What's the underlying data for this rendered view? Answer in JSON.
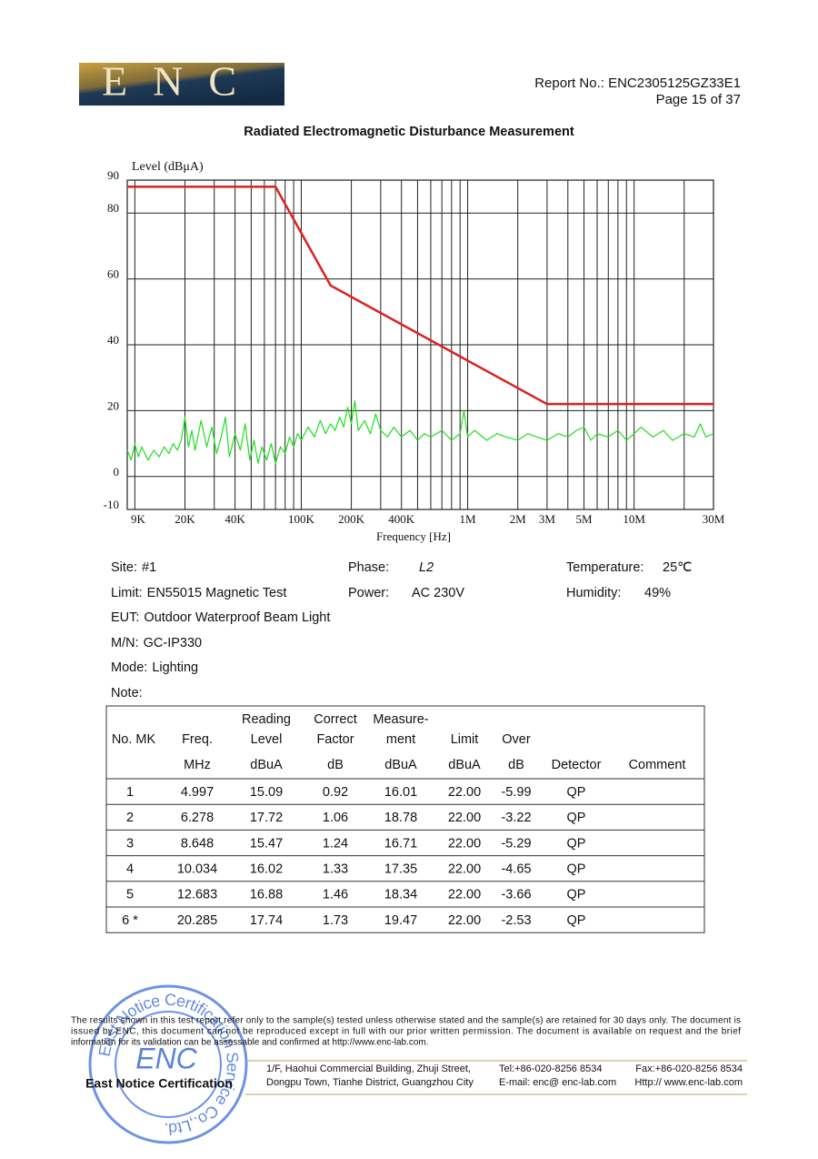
{
  "header": {
    "logo": "ENC",
    "report_no": "Report No.: ENC2305125GZ33E1",
    "page": "Page 15 of 37"
  },
  "title": "Radiated Electromagnetic Disturbance Measurement",
  "chart_data": {
    "type": "line",
    "y_label": "Level (dBμA)",
    "x_label": "Frequency [Hz]",
    "xscale": "log",
    "xlim": [
      9000,
      30000000
    ],
    "ylim": [
      -10,
      90
    ],
    "xticks": [
      {
        "value": 9000,
        "label": "9K"
      },
      {
        "value": 20000,
        "label": "20K"
      },
      {
        "value": 40000,
        "label": "40K"
      },
      {
        "value": 100000,
        "label": "100K"
      },
      {
        "value": 200000,
        "label": "200K"
      },
      {
        "value": 400000,
        "label": "400K"
      },
      {
        "value": 1000000,
        "label": "1M"
      },
      {
        "value": 2000000,
        "label": "2M"
      },
      {
        "value": 3000000,
        "label": "3M"
      },
      {
        "value": 5000000,
        "label": "5M"
      },
      {
        "value": 10000000,
        "label": "10M"
      },
      {
        "value": 30000000,
        "label": "30M"
      }
    ],
    "yticks": [
      90,
      80,
      60,
      40,
      20,
      0,
      -10
    ],
    "grid": true,
    "xgrid": [
      10000,
      20000,
      30000,
      40000,
      50000,
      60000,
      70000,
      80000,
      90000,
      100000,
      200000,
      300000,
      400000,
      500000,
      600000,
      700000,
      800000,
      900000,
      1000000,
      2000000,
      3000000,
      4000000,
      5000000,
      6000000,
      7000000,
      8000000,
      9000000,
      10000000,
      20000000,
      30000000
    ],
    "series": [
      {
        "color": "#dd2020",
        "x": [
          9000,
          70000,
          150000,
          3000000,
          30000000
        ],
        "values": [
          88,
          88,
          58,
          22,
          22
        ]
      },
      {
        "color": "#22dd22",
        "x": [
          9000,
          9500,
          10000,
          10500,
          11000,
          12000,
          13000,
          14000,
          15000,
          16000,
          17000,
          18000,
          19000,
          20000,
          21000,
          22000,
          23000,
          25000,
          27000,
          29000,
          31000,
          33000,
          35000,
          37000,
          40000,
          43000,
          46000,
          49000,
          52000,
          55000,
          58000,
          62000,
          66000,
          70000,
          75000,
          80000,
          85000,
          90000,
          95000,
          100000,
          110000,
          120000,
          130000,
          140000,
          150000,
          160000,
          170000,
          180000,
          190000,
          200000,
          210000,
          220000,
          240000,
          260000,
          280000,
          300000,
          330000,
          360000,
          400000,
          450000,
          500000,
          550000,
          600000,
          700000,
          800000,
          900000,
          950000,
          1000000,
          1100000,
          1300000,
          1500000,
          1700000,
          2000000,
          2300000,
          2600000,
          3000000,
          3500000,
          4000000,
          4500000,
          5000000,
          5500000,
          6000000,
          7000000,
          8000000,
          9000000,
          10000000,
          11000000,
          13000000,
          15000000,
          17000000,
          20000000,
          23000000,
          25000000,
          27000000,
          30000000
        ],
        "values": [
          8,
          5,
          10,
          6,
          9,
          5,
          8,
          6,
          9,
          7,
          10,
          8,
          11,
          18,
          9,
          14,
          8,
          17,
          9,
          15,
          7,
          12,
          18,
          6,
          13,
          8,
          16,
          5,
          11,
          4,
          9,
          5,
          10,
          4,
          9,
          7,
          12,
          9,
          13,
          11,
          15,
          12,
          17,
          13,
          16,
          14,
          18,
          15,
          21,
          16,
          23,
          14,
          17,
          13,
          19,
          14,
          12,
          15,
          12,
          14,
          11,
          13,
          12,
          14,
          11,
          13,
          20,
          12,
          14,
          11,
          13,
          12,
          11,
          13,
          12,
          11,
          13,
          12,
          14,
          15,
          11,
          13,
          12,
          14,
          11,
          13,
          15,
          12,
          14,
          11,
          13,
          12,
          16,
          12,
          13
        ]
      }
    ]
  },
  "info": [
    {
      "label": "Site:",
      "value": "#1"
    },
    {
      "label": "Phase:",
      "value": "L2"
    },
    {
      "label": "Temperature:",
      "value": "25℃"
    },
    {
      "label": "Limit:",
      "value": "EN55015 Magnetic Test"
    },
    {
      "label": "Power:",
      "value": "AC 230V"
    },
    {
      "label": "Humidity:",
      "value": "49%"
    },
    {
      "label": "EUT:",
      "value": "Outdoor Waterproof Beam Light"
    },
    {
      "label": "M/N:",
      "value": "GC-IP330"
    },
    {
      "label": "Mode:",
      "value": "Lighting"
    },
    {
      "label": "Note:"
    }
  ],
  "table": {
    "header": [
      [
        "No. MK"
      ],
      [
        "Freq."
      ],
      [
        "Reading",
        "Level"
      ],
      [
        "Correct",
        "Factor"
      ],
      [
        "Measure-",
        "ment"
      ],
      [
        "Limit"
      ],
      [
        "Over"
      ]
    ],
    "units": [
      "MHz",
      "dBuA",
      "dB",
      "dBuA",
      "dBuA",
      "dB",
      "Detector",
      "Comment"
    ],
    "rows": [
      [
        "1",
        "4.997",
        "15.09",
        "0.92",
        "16.01",
        "22.00",
        "-5.99",
        "QP"
      ],
      [
        "2",
        "6.278",
        "17.72",
        "1.06",
        "18.78",
        "22.00",
        "-3.22",
        "QP"
      ],
      [
        "3",
        "8.648",
        "15.47",
        "1.24",
        "16.71",
        "22.00",
        "-5.29",
        "QP"
      ],
      [
        "4",
        "10.034",
        "16.02",
        "1.33",
        "17.35",
        "22.00",
        "-4.65",
        "QP"
      ],
      [
        "5",
        "12.683",
        "16.88",
        "1.46",
        "18.34",
        "22.00",
        "-3.66",
        "QP"
      ],
      [
        "6 *",
        "20.285",
        "17.74",
        "1.73",
        "19.47",
        "22.00",
        "-2.53",
        "QP"
      ]
    ]
  },
  "footer": {
    "disclaimer": [
      "The results shown in this test report refer only to the sample(s) tested unless otherwise stated and the sample(s) are retained for 30 days only. The document is",
      "issued by ENC, this document can not be reproduced except in full with our prior written permission. The document is available on request and the brief",
      "information for its validation can be assessable and confirmed at http://www.enc-lab.com."
    ],
    "stamp": {
      "text": "East Notice Certification Service Co.,Ltd.",
      "logo": "ENC"
    },
    "company": "East Notice Certification",
    "address": [
      "1/F, Haohui Commercial Building, Zhuji Street,",
      "Dongpu Town, Tianhe District, Guangzhou City"
    ],
    "tel": "Tel:+86-020-8256 8534",
    "email": "E-mail: enc@ enc-lab.com",
    "fax": "Fax:+86-020-8256 8534",
    "web": "Http:// www.enc-lab.com"
  }
}
